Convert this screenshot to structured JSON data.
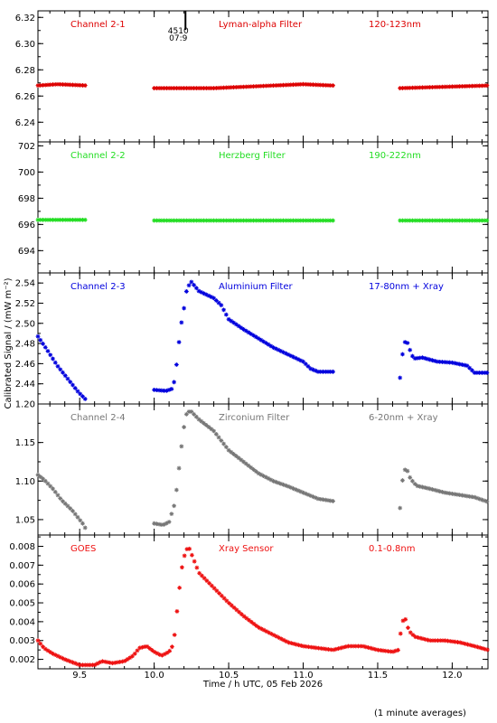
{
  "x_axis": {
    "label": "Time / h UTC, 05 Feb 2026",
    "range": [
      9.22,
      12.24
    ],
    "ticks": [
      "9.5",
      "10.0",
      "10.5",
      "11.0",
      "11.5",
      "12.0"
    ],
    "tick_values": [
      9.5,
      10.0,
      10.5,
      11.0,
      11.5,
      12.0
    ]
  },
  "y_axis_label": "Calibrated Signal / (mW m⁻²)",
  "footnote": "(1 minute averages)",
  "marker_annotation": {
    "time": 10.21,
    "line1": "4510",
    "line2": "07:9"
  },
  "chart_data": [
    {
      "type": "scatter",
      "channel": "Channel 2-1",
      "filter": "Lyman-alpha Filter",
      "band": "120-123nm",
      "color": "#dd0000",
      "ylim": [
        6.225,
        6.325
      ],
      "yticks": [
        "6.24",
        "6.26",
        "6.28",
        "6.30",
        "6.32"
      ],
      "ytick_values": [
        6.24,
        6.26,
        6.28,
        6.3,
        6.32
      ],
      "segments": [
        {
          "t_start": 9.22,
          "t_end": 9.55,
          "points": [
            [
              9.22,
              6.268
            ],
            [
              9.35,
              6.269
            ],
            [
              9.55,
              6.268
            ]
          ]
        },
        {
          "t_start": 10.0,
          "t_end": 11.2,
          "points": [
            [
              10.0,
              6.266
            ],
            [
              10.4,
              6.266
            ],
            [
              11.0,
              6.269
            ],
            [
              11.2,
              6.268
            ]
          ]
        },
        {
          "t_start": 11.65,
          "t_end": 12.24,
          "points": [
            [
              11.65,
              6.266
            ],
            [
              12.24,
              6.268
            ]
          ]
        }
      ]
    },
    {
      "type": "scatter",
      "channel": "Channel 2-2",
      "filter": "Herzberg Filter",
      "band": "190-222nm",
      "color": "#22dd22",
      "ylim": [
        692.3,
        702.3
      ],
      "yticks": [
        "694",
        "696",
        "698",
        "700",
        "702"
      ],
      "ytick_values": [
        694,
        696,
        698,
        700,
        702
      ],
      "segments": [
        {
          "t_start": 9.22,
          "t_end": 9.55,
          "points": [
            [
              9.22,
              696.35
            ],
            [
              9.55,
              696.35
            ]
          ]
        },
        {
          "t_start": 10.0,
          "t_end": 11.2,
          "points": [
            [
              10.0,
              696.3
            ],
            [
              11.2,
              696.3
            ]
          ]
        },
        {
          "t_start": 11.65,
          "t_end": 12.24,
          "points": [
            [
              11.65,
              696.3
            ],
            [
              12.24,
              696.3
            ]
          ]
        }
      ]
    },
    {
      "type": "scatter",
      "channel": "Channel 2-3",
      "filter": "Aluminium Filter",
      "band": "17-80nm + Xray",
      "color": "#0000dd",
      "ylim": [
        2.42,
        2.55
      ],
      "yticks": [
        "2.44",
        "2.46",
        "2.48",
        "2.50",
        "2.52",
        "2.54"
      ],
      "ytick_values": [
        2.44,
        2.46,
        2.48,
        2.5,
        2.52,
        2.54
      ],
      "segments": [
        {
          "t_start": 9.22,
          "t_end": 9.55,
          "points": [
            [
              9.22,
              2.487
            ],
            [
              9.28,
              2.474
            ],
            [
              9.35,
              2.458
            ],
            [
              9.42,
              2.445
            ],
            [
              9.49,
              2.432
            ],
            [
              9.55,
              2.423
            ]
          ]
        },
        {
          "t_start": 10.0,
          "t_end": 11.2,
          "points": [
            [
              10.0,
              2.434
            ],
            [
              10.08,
              2.433
            ],
            [
              10.12,
              2.435
            ],
            [
              10.14,
              2.445
            ],
            [
              10.16,
              2.473
            ],
            [
              10.18,
              2.498
            ],
            [
              10.2,
              2.515
            ],
            [
              10.22,
              2.535
            ],
            [
              10.25,
              2.541
            ],
            [
              10.3,
              2.532
            ],
            [
              10.4,
              2.525
            ],
            [
              10.45,
              2.518
            ],
            [
              10.5,
              2.504
            ],
            [
              10.6,
              2.494
            ],
            [
              10.7,
              2.485
            ],
            [
              10.8,
              2.476
            ],
            [
              10.9,
              2.469
            ],
            [
              11.0,
              2.462
            ],
            [
              11.05,
              2.455
            ],
            [
              11.1,
              2.452
            ],
            [
              11.2,
              2.452
            ]
          ]
        },
        {
          "t_start": 11.65,
          "t_end": 12.24,
          "points": [
            [
              11.65,
              2.446
            ],
            [
              11.67,
              2.474
            ],
            [
              11.69,
              2.485
            ],
            [
              11.71,
              2.476
            ],
            [
              11.74,
              2.465
            ],
            [
              11.8,
              2.466
            ],
            [
              11.9,
              2.462
            ],
            [
              12.0,
              2.461
            ],
            [
              12.1,
              2.458
            ],
            [
              12.15,
              2.451
            ],
            [
              12.24,
              2.451
            ]
          ]
        }
      ]
    },
    {
      "type": "scatter",
      "channel": "Channel 2-4",
      "filter": "Zirconium Filter",
      "band": "6-20nm + Xray",
      "color": "#777777",
      "ylim": [
        1.03,
        1.2
      ],
      "yticks": [
        "1.05",
        "1.10",
        "1.15",
        "1.20"
      ],
      "ytick_values": [
        1.05,
        1.1,
        1.15,
        1.2
      ],
      "segments": [
        {
          "t_start": 9.22,
          "t_end": 9.55,
          "points": [
            [
              9.22,
              1.108
            ],
            [
              9.26,
              1.102
            ],
            [
              9.32,
              1.09
            ],
            [
              9.38,
              1.075
            ],
            [
              9.45,
              1.062
            ],
            [
              9.52,
              1.045
            ],
            [
              9.55,
              1.035
            ]
          ]
        },
        {
          "t_start": 10.0,
          "t_end": 11.2,
          "points": [
            [
              10.0,
              1.045
            ],
            [
              10.06,
              1.043
            ],
            [
              10.1,
              1.047
            ],
            [
              10.14,
              1.072
            ],
            [
              10.16,
              1.105
            ],
            [
              10.18,
              1.14
            ],
            [
              10.2,
              1.17
            ],
            [
              10.22,
              1.19
            ],
            [
              10.25,
              1.19
            ],
            [
              10.3,
              1.18
            ],
            [
              10.4,
              1.165
            ],
            [
              10.5,
              1.14
            ],
            [
              10.6,
              1.125
            ],
            [
              10.7,
              1.11
            ],
            [
              10.8,
              1.1
            ],
            [
              10.9,
              1.093
            ],
            [
              11.0,
              1.085
            ],
            [
              11.1,
              1.077
            ],
            [
              11.2,
              1.074
            ]
          ]
        },
        {
          "t_start": 11.65,
          "t_end": 12.24,
          "points": [
            [
              11.65,
              1.065
            ],
            [
              11.67,
              1.108
            ],
            [
              11.69,
              1.118
            ],
            [
              11.72,
              1.103
            ],
            [
              11.76,
              1.094
            ],
            [
              11.85,
              1.09
            ],
            [
              11.95,
              1.085
            ],
            [
              12.05,
              1.082
            ],
            [
              12.15,
              1.079
            ],
            [
              12.24,
              1.073
            ]
          ]
        }
      ]
    },
    {
      "type": "scatter",
      "channel": "GOES",
      "filter": "Xray Sensor",
      "band": "0.1-0.8nm",
      "color": "#ee1111",
      "ylim": [
        0.0015,
        0.0086
      ],
      "yticks": [
        "0.002",
        "0.003",
        "0.004",
        "0.005",
        "0.006",
        "0.007",
        "0.008"
      ],
      "ytick_values": [
        0.002,
        0.003,
        0.004,
        0.005,
        0.006,
        0.007,
        0.008
      ],
      "segments": [
        {
          "t_start": 9.22,
          "t_end": 12.24,
          "points": [
            [
              9.22,
              0.003
            ],
            [
              9.26,
              0.0026
            ],
            [
              9.32,
              0.0023
            ],
            [
              9.4,
              0.002
            ],
            [
              9.5,
              0.0017
            ],
            [
              9.6,
              0.0017
            ],
            [
              9.65,
              0.0019
            ],
            [
              9.72,
              0.0018
            ],
            [
              9.8,
              0.0019
            ],
            [
              9.86,
              0.0022
            ],
            [
              9.9,
              0.0026
            ],
            [
              9.95,
              0.0027
            ],
            [
              10.0,
              0.0024
            ],
            [
              10.05,
              0.0022
            ],
            [
              10.1,
              0.0024
            ],
            [
              10.13,
              0.0028
            ],
            [
              10.15,
              0.0043
            ],
            [
              10.17,
              0.0058
            ],
            [
              10.19,
              0.0071
            ],
            [
              10.21,
              0.0077
            ],
            [
              10.23,
              0.008
            ],
            [
              10.26,
              0.0074
            ],
            [
              10.3,
              0.0066
            ],
            [
              10.35,
              0.0062
            ],
            [
              10.4,
              0.0058
            ],
            [
              10.5,
              0.005
            ],
            [
              10.6,
              0.0043
            ],
            [
              10.7,
              0.0037
            ],
            [
              10.8,
              0.0033
            ],
            [
              10.9,
              0.0029
            ],
            [
              11.0,
              0.0027
            ],
            [
              11.1,
              0.0026
            ],
            [
              11.2,
              0.0025
            ],
            [
              11.3,
              0.0027
            ],
            [
              11.4,
              0.0027
            ],
            [
              11.5,
              0.0025
            ],
            [
              11.6,
              0.0024
            ],
            [
              11.64,
              0.0025
            ],
            [
              11.66,
              0.0038
            ],
            [
              11.68,
              0.0043
            ],
            [
              11.71,
              0.0035
            ],
            [
              11.75,
              0.0032
            ],
            [
              11.85,
              0.003
            ],
            [
              11.95,
              0.003
            ],
            [
              12.05,
              0.0029
            ],
            [
              12.15,
              0.0027
            ],
            [
              12.24,
              0.0025
            ]
          ]
        }
      ]
    }
  ]
}
